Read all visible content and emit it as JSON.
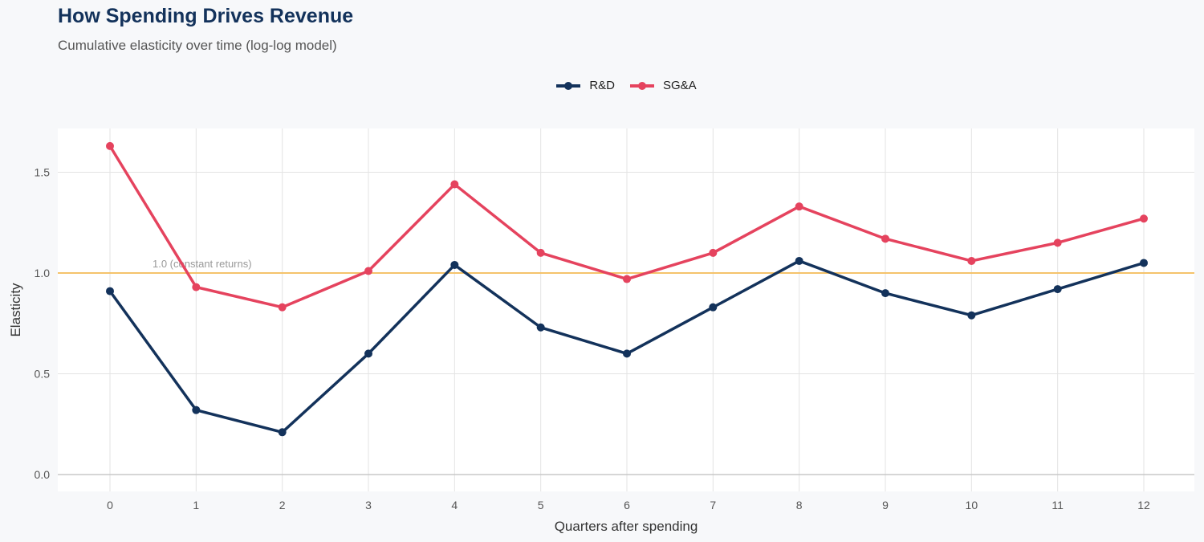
{
  "chart_data": {
    "type": "line",
    "title": "How Spending Drives Revenue",
    "subtitle": "Cumulative elasticity over time (log-log model)",
    "xlabel": "Quarters after spending",
    "ylabel": "Elasticity",
    "x": [
      0,
      1,
      2,
      3,
      4,
      5,
      6,
      7,
      8,
      9,
      10,
      11,
      12
    ],
    "xticks": [
      "0",
      "1",
      "2",
      "3",
      "4",
      "5",
      "6",
      "7",
      "8",
      "9",
      "10",
      "11",
      "12"
    ],
    "yticks": [
      "0.0",
      "0.5",
      "1.0",
      "1.5"
    ],
    "ylim": [
      -0.08,
      1.7
    ],
    "grid": true,
    "legend_position": "top",
    "reference_line": {
      "y": 1.0,
      "label": "1.0 (constant returns)",
      "color": "#f5c36b"
    },
    "series": [
      {
        "name": "R&D",
        "color": "#13325b",
        "values": [
          0.91,
          0.32,
          0.21,
          0.6,
          1.04,
          0.73,
          0.6,
          0.83,
          1.06,
          0.9,
          0.79,
          0.92,
          1.05
        ]
      },
      {
        "name": "SG&A",
        "color": "#e5435e",
        "values": [
          1.63,
          0.93,
          0.83,
          1.01,
          1.44,
          1.1,
          0.97,
          1.1,
          1.33,
          1.17,
          1.06,
          1.15,
          1.27
        ]
      }
    ]
  }
}
